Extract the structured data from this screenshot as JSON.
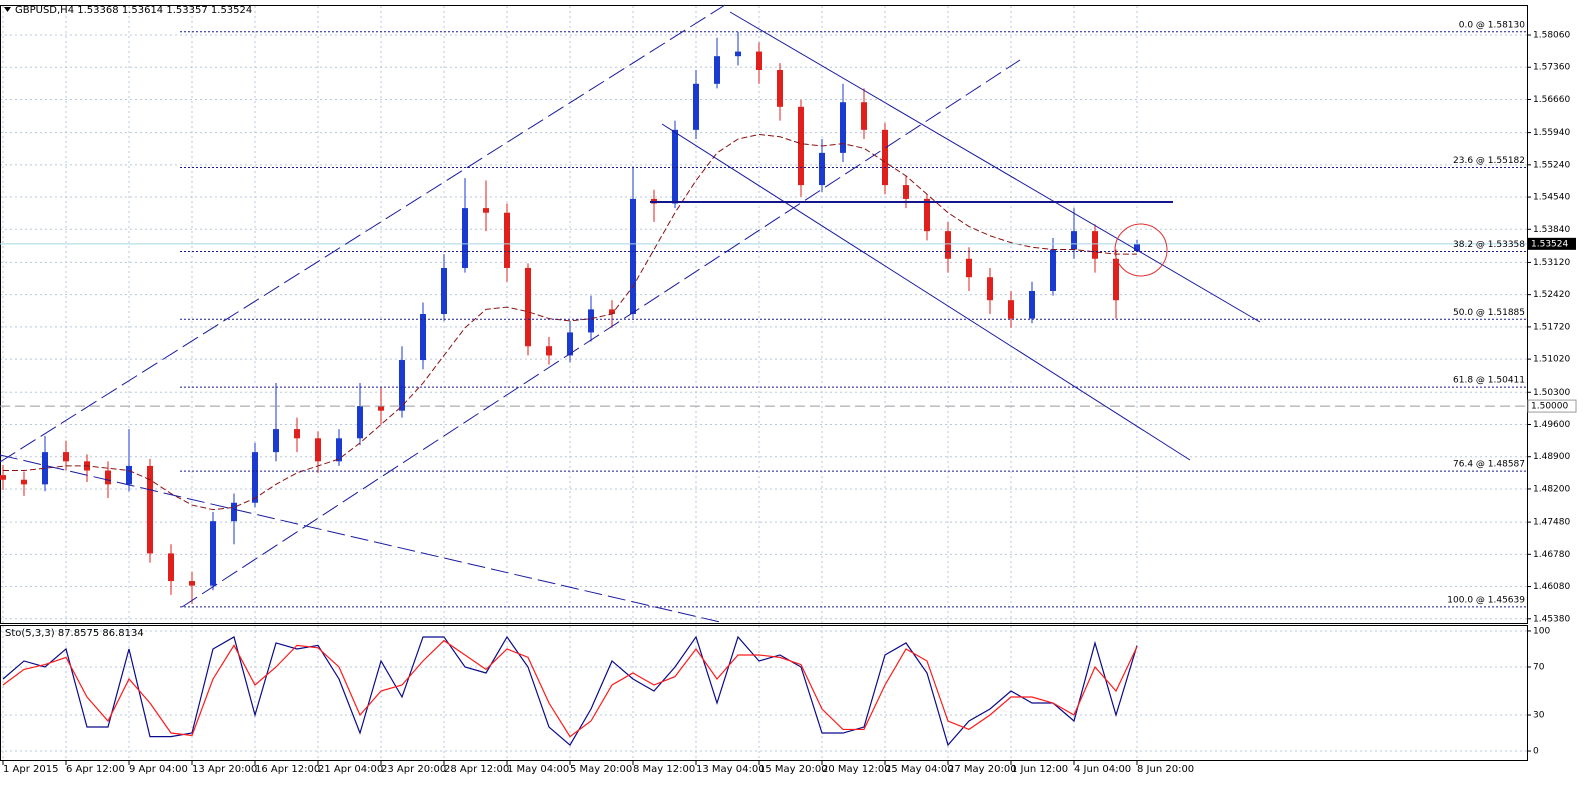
{
  "chart_data": [
    {
      "type": "candlestick",
      "title": "GBPUSD,H4",
      "categories": [
        "1 Apr 2015",
        null,
        null,
        "6 Apr 12:00",
        null,
        null,
        "9 Apr 04:00",
        null,
        null,
        "13 Apr 20:00",
        null,
        null,
        "16 Apr 12:00",
        null,
        null,
        "21 Apr 04:00",
        null,
        null,
        "23 Apr 20:00",
        null,
        null,
        "28 Apr 12:00",
        null,
        null,
        "1 May 04:00",
        null,
        null,
        "5 May 20:00",
        null,
        null,
        "8 May 12:00",
        null,
        null,
        "13 May 04:00",
        null,
        null,
        "15 May 20:00",
        null,
        null,
        "20 May 12:00",
        null,
        null,
        "25 May 04:00",
        null,
        null,
        "27 May 20:00",
        null,
        null,
        "1 Jun 12:00",
        null,
        null,
        "4 Jun 04:00",
        null,
        null,
        "8 Jun 20:00"
      ],
      "open": [
        1.485,
        1.484,
        1.483,
        1.49,
        1.488,
        1.486,
        1.483,
        1.487,
        1.468,
        1.462,
        1.461,
        1.475,
        1.479,
        1.49,
        1.495,
        1.493,
        1.488,
        1.493,
        1.5,
        1.499,
        1.51,
        1.52,
        1.53,
        1.543,
        1.542,
        1.53,
        1.513,
        1.511,
        1.516,
        1.521,
        1.52,
        1.545,
        1.544,
        1.56,
        1.57,
        1.576,
        1.577,
        1.573,
        1.565,
        1.548,
        1.555,
        1.566,
        1.56,
        1.548,
        1.545,
        1.538,
        1.532,
        1.528,
        1.523,
        1.519,
        1.525,
        1.534,
        1.538,
        1.532,
        1.53368
      ],
      "high": [
        1.4872,
        1.4858,
        1.4935,
        1.4925,
        1.4895,
        1.488,
        1.495,
        1.4885,
        1.47,
        1.464,
        1.477,
        1.481,
        1.492,
        1.505,
        1.4975,
        1.4945,
        1.495,
        1.505,
        1.504,
        1.513,
        1.5225,
        1.533,
        1.5495,
        1.549,
        1.544,
        1.531,
        1.515,
        1.5185,
        1.524,
        1.523,
        1.552,
        1.547,
        1.562,
        1.573,
        1.58,
        1.5813,
        1.579,
        1.5745,
        1.5665,
        1.558,
        1.57,
        1.569,
        1.5615,
        1.55,
        1.546,
        1.54,
        1.5345,
        1.53,
        1.525,
        1.527,
        1.5365,
        1.543,
        1.5395,
        1.534,
        1.53614
      ],
      "low": [
        1.4818,
        1.4805,
        1.4815,
        1.486,
        1.4835,
        1.48,
        1.4815,
        1.466,
        1.459,
        1.457,
        1.46,
        1.47,
        1.478,
        1.488,
        1.49,
        1.4855,
        1.487,
        1.4915,
        1.496,
        1.4975,
        1.508,
        1.5185,
        1.529,
        1.538,
        1.527,
        1.511,
        1.509,
        1.5095,
        1.514,
        1.517,
        1.519,
        1.54,
        1.543,
        1.558,
        1.569,
        1.574,
        1.57,
        1.562,
        1.5455,
        1.5465,
        1.553,
        1.558,
        1.546,
        1.543,
        1.536,
        1.529,
        1.525,
        1.52,
        1.517,
        1.518,
        1.524,
        1.532,
        1.529,
        1.519,
        1.53357
      ],
      "close": [
        1.484,
        1.483,
        1.49,
        1.488,
        1.486,
        1.483,
        1.487,
        1.468,
        1.462,
        1.461,
        1.475,
        1.479,
        1.49,
        1.495,
        1.493,
        1.488,
        1.493,
        1.5,
        1.499,
        1.51,
        1.52,
        1.53,
        1.543,
        1.542,
        1.53,
        1.513,
        1.511,
        1.516,
        1.521,
        1.52,
        1.545,
        1.544,
        1.56,
        1.57,
        1.576,
        1.577,
        1.573,
        1.565,
        1.548,
        1.555,
        1.566,
        1.56,
        1.548,
        1.545,
        1.538,
        1.532,
        1.528,
        1.523,
        1.519,
        1.525,
        1.534,
        1.538,
        1.532,
        1.523,
        1.53524
      ],
      "up_color": "#1a3ad0",
      "down_color": "#e0201c",
      "overlay": {
        "color": "#8b1010",
        "values": [
          1.486,
          1.486,
          1.4865,
          1.487,
          1.487,
          1.4865,
          1.486,
          1.484,
          1.481,
          1.4785,
          1.4775,
          1.478,
          1.48,
          1.483,
          1.4855,
          1.487,
          1.4885,
          1.492,
          1.496,
          1.5,
          1.505,
          1.511,
          1.517,
          1.521,
          1.5215,
          1.5205,
          1.519,
          1.5185,
          1.519,
          1.52,
          1.526,
          1.534,
          1.542,
          1.549,
          1.555,
          1.558,
          1.559,
          1.5585,
          1.557,
          1.5565,
          1.557,
          1.556,
          1.553,
          1.55,
          1.546,
          1.542,
          1.539,
          1.537,
          1.5355,
          1.5345,
          1.534,
          1.534,
          1.5335,
          1.533,
          1.533
        ]
      },
      "fib_levels": [
        {
          "label": "0.0 @ 1.58130",
          "value": 1.5813
        },
        {
          "label": "23.6 @ 1.55182",
          "value": 1.55182
        },
        {
          "label": "38.2 @ 1.53358",
          "value": 1.53358
        },
        {
          "label": "50.0 @ 1.51885",
          "value": 1.51885
        },
        {
          "label": "61.8 @ 1.50411",
          "value": 1.50411
        },
        {
          "label": "76.4 @ 1.48587",
          "value": 1.48587
        },
        {
          "label": "100.0 @ 1.45639",
          "value": 1.45639
        }
      ],
      "reference_line": {
        "value": 1.5,
        "label": "1.50000"
      },
      "ylim": [
        1.4531,
        1.5869
      ],
      "yticks": [
        {
          "value": 1.5806,
          "label": "1.58060"
        },
        {
          "value": 1.5736,
          "label": "1.57360"
        },
        {
          "value": 1.5666,
          "label": "1.56660"
        },
        {
          "value": 1.5594,
          "label": "1.55940"
        },
        {
          "value": 1.5524,
          "label": "1.55240"
        },
        {
          "value": 1.5454,
          "label": "1.54540"
        },
        {
          "value": 1.5384,
          "label": "1.53840"
        },
        {
          "value": 1.5312,
          "label": "1.53120"
        },
        {
          "value": 1.5242,
          "label": "1.52420"
        },
        {
          "value": 1.5172,
          "label": "1.51720"
        },
        {
          "value": 1.5102,
          "label": "1.51020"
        },
        {
          "value": 1.503,
          "label": "1.50300"
        },
        {
          "value": 1.496,
          "label": "1.49600"
        },
        {
          "value": 1.489,
          "label": "1.48900"
        },
        {
          "value": 1.482,
          "label": "1.48200"
        },
        {
          "value": 1.4748,
          "label": "1.47480"
        },
        {
          "value": 1.4678,
          "label": "1.46780"
        },
        {
          "value": 1.4608,
          "label": "1.46080"
        },
        {
          "value": 1.4538,
          "label": "1.45380"
        }
      ],
      "grid": true
    },
    {
      "type": "line",
      "title": "Sto(5,3,3)",
      "series": [
        {
          "color": "#0a0a8a",
          "values": [
            60,
            75,
            70,
            85,
            20,
            20,
            85,
            12,
            12,
            15,
            85,
            95,
            30,
            90,
            85,
            88,
            60,
            15,
            75,
            45,
            95,
            95,
            70,
            65,
            95,
            70,
            20,
            5,
            35,
            75,
            60,
            50,
            70,
            95,
            40,
            95,
            75,
            80,
            70,
            15,
            15,
            20,
            80,
            90,
            65,
            5,
            25,
            35,
            50,
            40,
            40,
            25,
            90,
            30,
            87.8575
          ]
        },
        {
          "color": "#ff1a1a",
          "values": [
            55,
            68,
            72,
            78,
            45,
            25,
            60,
            40,
            15,
            13,
            60,
            88,
            55,
            70,
            88,
            86,
            70,
            30,
            50,
            55,
            75,
            92,
            80,
            68,
            85,
            78,
            40,
            12,
            25,
            55,
            65,
            55,
            62,
            85,
            60,
            80,
            80,
            78,
            72,
            35,
            18,
            18,
            55,
            85,
            75,
            25,
            18,
            30,
            45,
            45,
            40,
            30,
            70,
            50,
            86.8134
          ]
        }
      ],
      "ylim": [
        -5.8,
        103.3
      ],
      "yticks": [
        0,
        30,
        70,
        100
      ],
      "grid": true
    }
  ]
}
